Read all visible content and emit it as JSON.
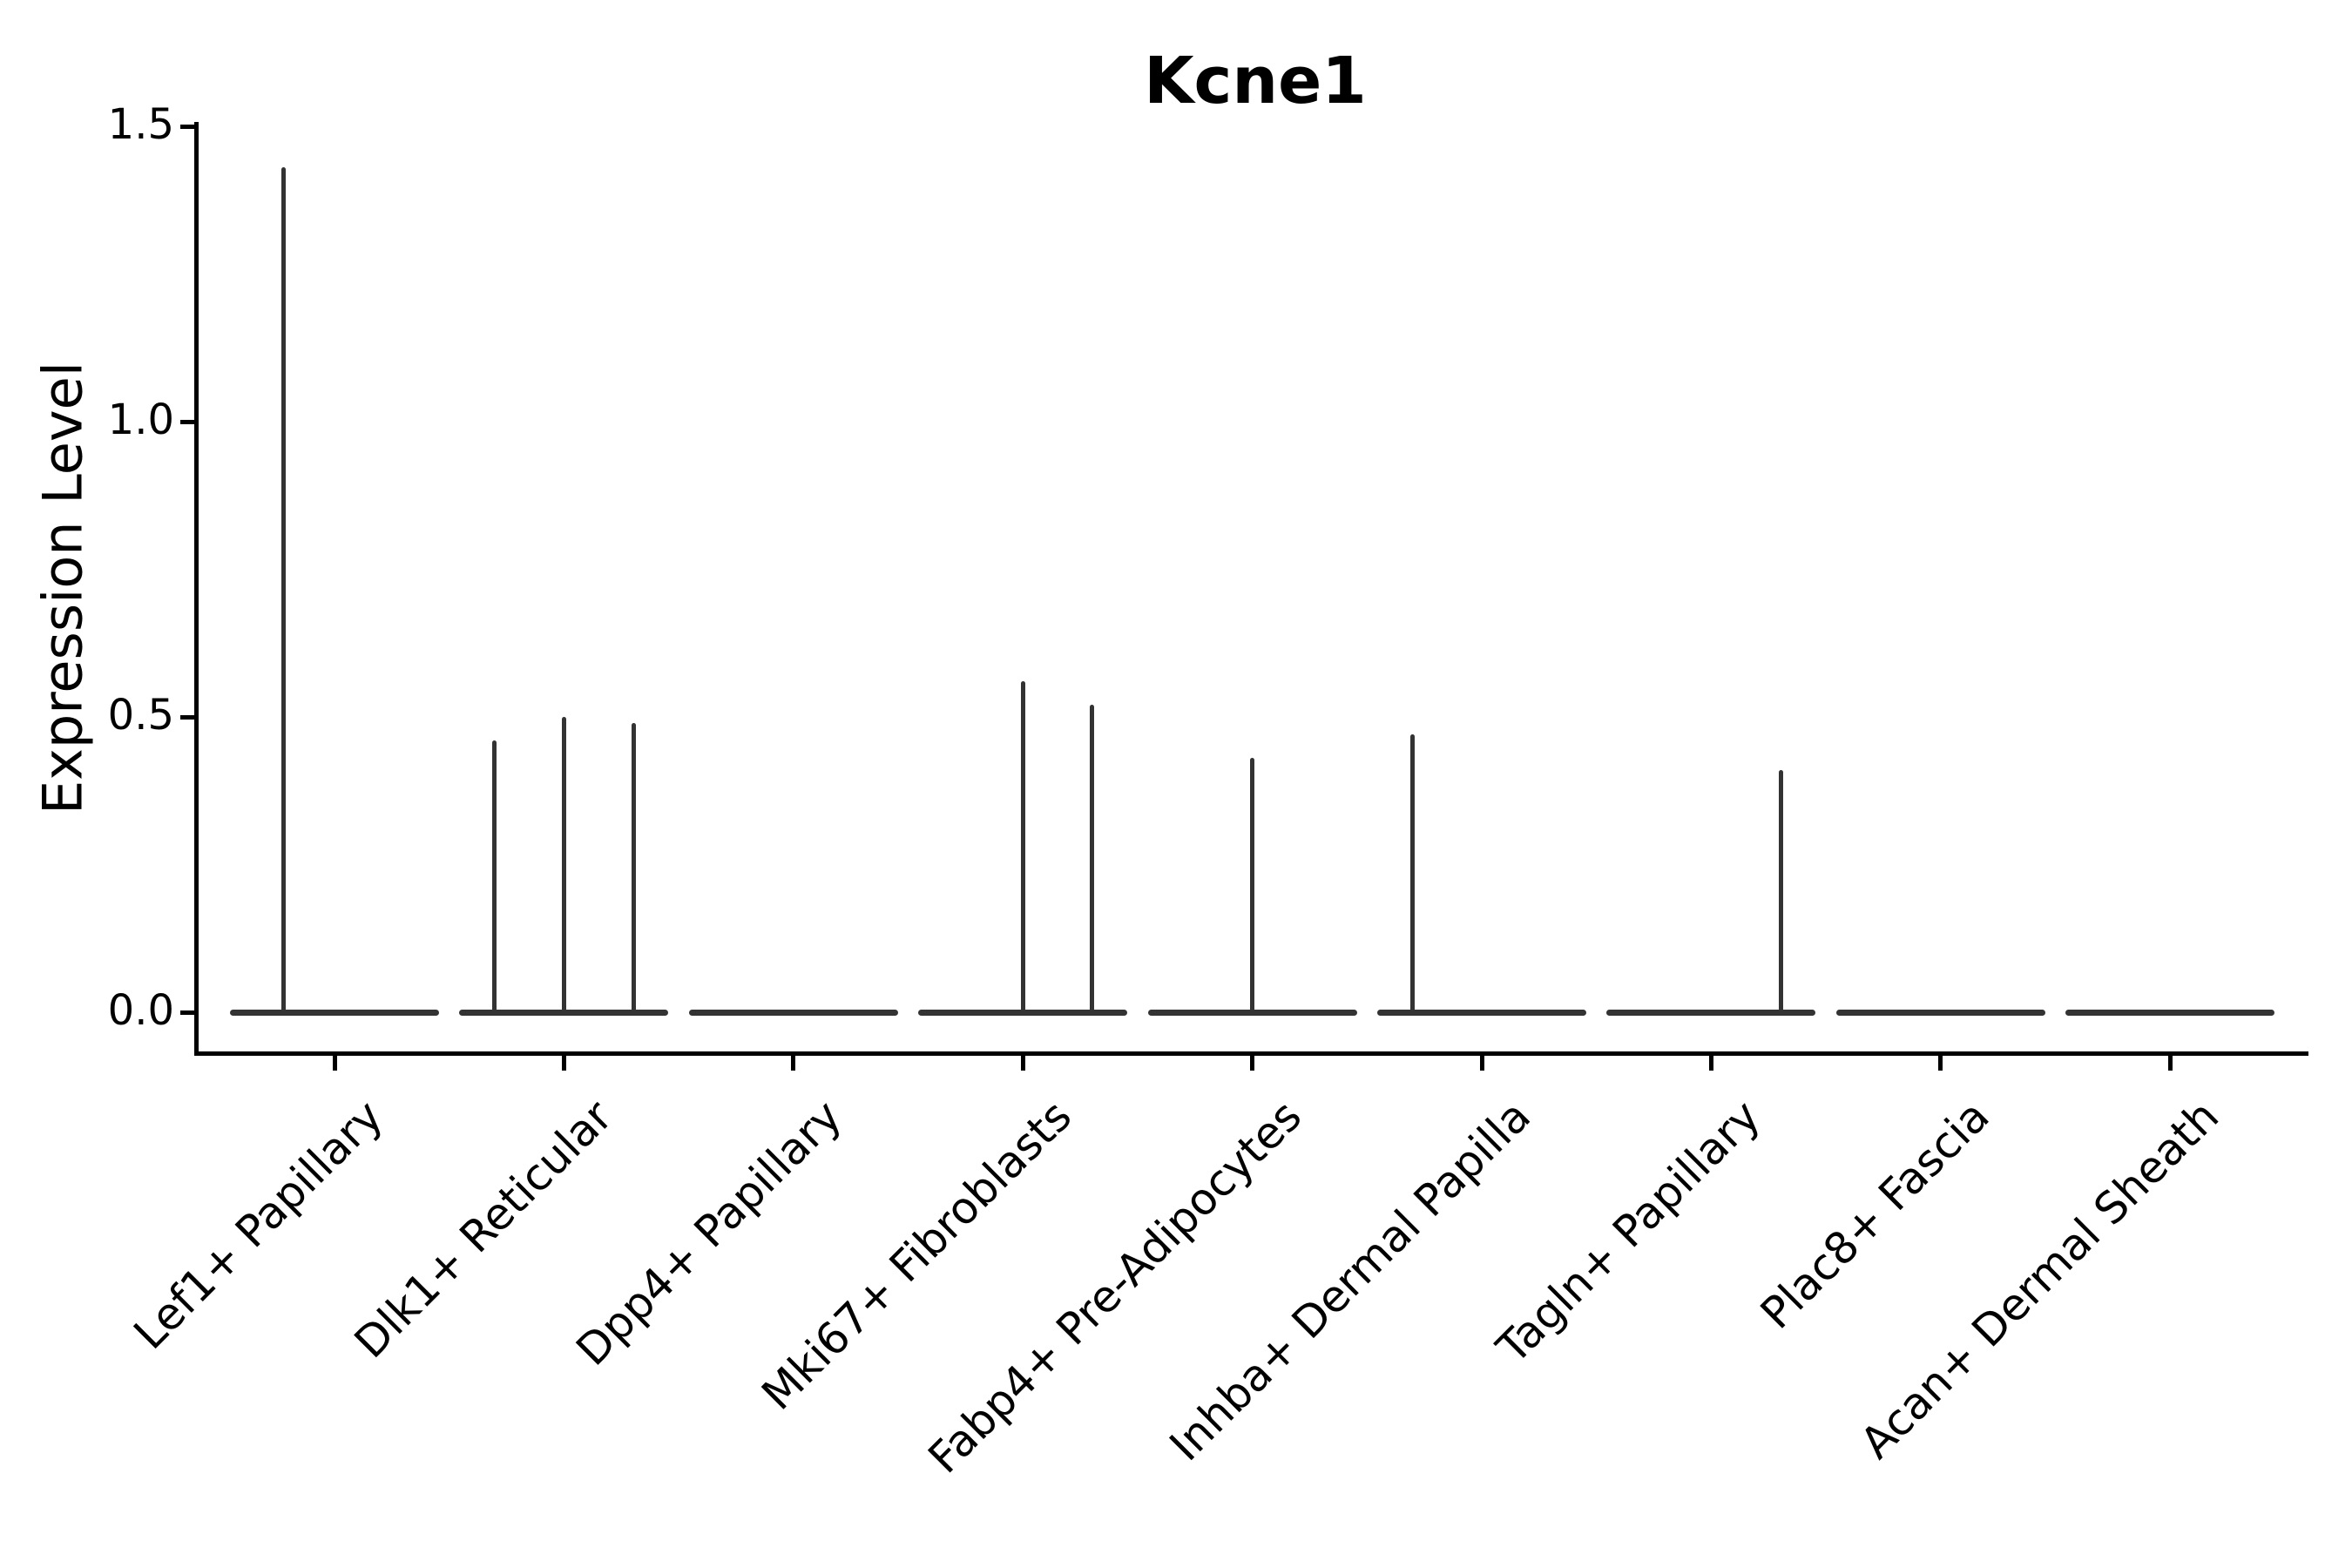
{
  "title": "Kcne1",
  "y_axis": {
    "label": "Expression Level",
    "tick_labels": [
      "0.0",
      "0.5",
      "1.0",
      "1.5"
    ]
  },
  "x_axis": {
    "categories": [
      "Lef1+ Papillary",
      "Dlk1+ Reticular",
      "Dpp4+ Papillary",
      "Mki67+ Fibroblasts",
      "Fabp4+ Pre-Adipocytes",
      "Inhba+ Dermal Papilla",
      "Tagln+ Papillary",
      "Plac8+ Fascia",
      "Acan+ Dermal Sheath"
    ]
  },
  "chart_data": {
    "type": "violin",
    "title": "Kcne1",
    "xlabel": "",
    "ylabel": "Expression Level",
    "ylim": [
      0,
      1.5
    ],
    "yticks": [
      0,
      0.5,
      1,
      1.5
    ],
    "ytick_labels": [
      "0.0",
      "0.5",
      "1.0",
      "1.5"
    ],
    "grid": false,
    "legend_position": "none",
    "description": "Collapsed violins: flat zero-expression line per category with thin spikes up to the max expression of rare expressing cells",
    "categories": [
      "Lef1+ Papillary",
      "Dlk1+ Reticular",
      "Dpp4+ Papillary",
      "Mki67+ Fibroblasts",
      "Fabp4+ Pre-Adipocytes",
      "Inhba+ Dermal Papilla",
      "Tagln+ Papillary",
      "Plac8+ Fascia",
      "Acan+ Dermal Sheath"
    ],
    "violins": [
      {
        "category": "Lef1+ Papillary",
        "zero_line": true,
        "spikes": [
          {
            "offset": -59,
            "value": 1.43
          }
        ]
      },
      {
        "category": "Dlk1+ Reticular",
        "zero_line": true,
        "spikes": [
          {
            "offset": -80,
            "value": 0.46
          },
          {
            "offset": 0,
            "value": 0.5
          },
          {
            "offset": 80,
            "value": 0.49
          }
        ]
      },
      {
        "category": "Dpp4+ Papillary",
        "zero_line": true,
        "spikes": []
      },
      {
        "category": "Mki67+ Fibroblasts",
        "zero_line": true,
        "spikes": [
          {
            "offset": 0,
            "value": 0.56
          },
          {
            "offset": 79,
            "value": 0.52
          }
        ]
      },
      {
        "category": "Fabp4+ Pre-Adipocytes",
        "zero_line": true,
        "spikes": [
          {
            "offset": 0,
            "value": 0.43
          }
        ]
      },
      {
        "category": "Inhba+ Dermal Papilla",
        "zero_line": true,
        "spikes": [
          {
            "offset": -80,
            "value": 0.47
          }
        ]
      },
      {
        "category": "Tagln+ Papillary",
        "zero_line": true,
        "spikes": [
          {
            "offset": 80,
            "value": 0.41
          }
        ]
      },
      {
        "category": "Plac8+ Fascia",
        "zero_line": true,
        "spikes": []
      },
      {
        "category": "Acan+ Dermal Sheath",
        "zero_line": true,
        "spikes": []
      }
    ]
  },
  "colors": {
    "background": "#ffffff",
    "violin_stroke": "#333333",
    "axis": "#000000",
    "text": "#000000"
  }
}
